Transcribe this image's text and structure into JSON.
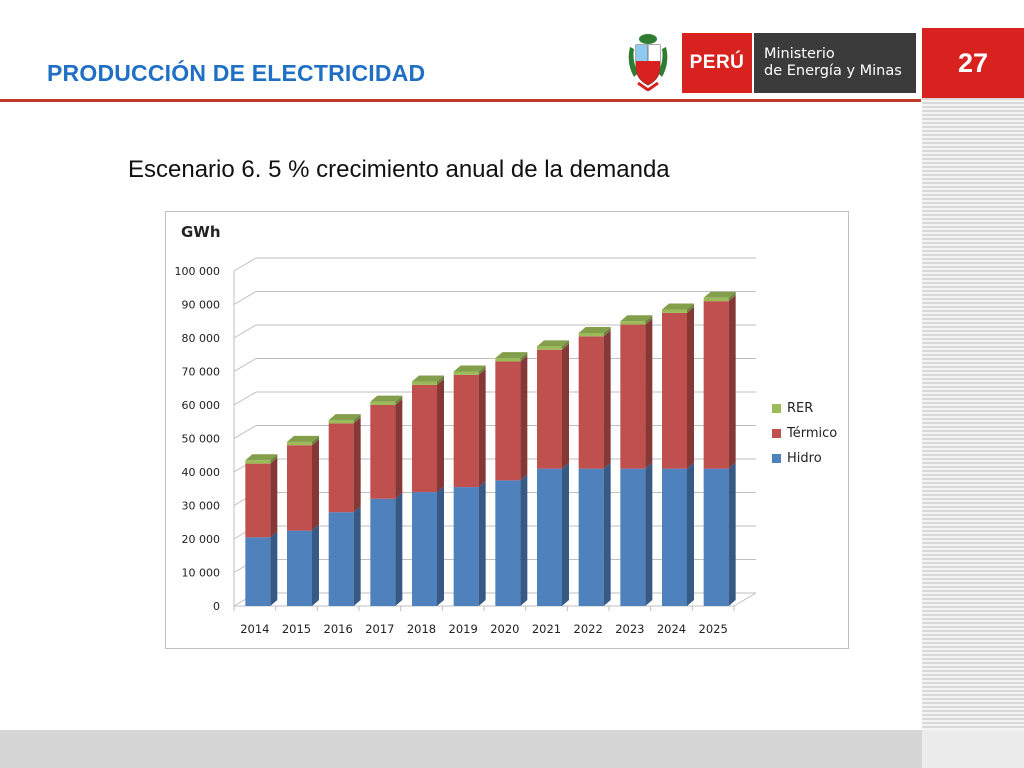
{
  "header": {
    "title": "PRODUCCIÓN DE ELECTRICIDAD",
    "page_number": "27"
  },
  "logo": {
    "country": "PERÚ",
    "ministry_line1": "Ministerio",
    "ministry_line2": "de Energía y Minas",
    "shield_icon": "peru-coat-of-arms-icon"
  },
  "slide": {
    "scenario_title": "Escenario 6. 5 % crecimiento anual de la demanda"
  },
  "colors": {
    "accent_red": "#d7221f",
    "title_blue": "#1f6fc4",
    "hidro": "#4f81bd",
    "termico": "#c0504d",
    "rer": "#9bbb59"
  },
  "chart_data": {
    "type": "bar",
    "stacked": true,
    "three_d": true,
    "title": "",
    "ylabel": "GWh",
    "xlabel": "",
    "ylim": [
      0,
      100000
    ],
    "yticks": [
      "0",
      "10 000",
      "20 000",
      "30 000",
      "40 000",
      "50 000",
      "60 000",
      "70 000",
      "80 000",
      "90 000",
      "100 000"
    ],
    "categories": [
      "2014",
      "2015",
      "2016",
      "2017",
      "2018",
      "2019",
      "2020",
      "2021",
      "2022",
      "2023",
      "2024",
      "2025"
    ],
    "series": [
      {
        "name": "Hidro",
        "color": "#4f81bd",
        "values": [
          20500,
          22500,
          28000,
          32000,
          34000,
          35500,
          37500,
          41000,
          41000,
          41000,
          41000,
          41000
        ]
      },
      {
        "name": "Térmico",
        "color": "#c0504d",
        "values": [
          22000,
          25500,
          26500,
          28000,
          32000,
          33500,
          35500,
          35500,
          39500,
          43000,
          46500,
          50000
        ]
      },
      {
        "name": "RER",
        "color": "#9bbb59",
        "values": [
          1000,
          1000,
          1000,
          1000,
          1000,
          1000,
          1000,
          1000,
          1000,
          1000,
          1000,
          1000
        ]
      }
    ],
    "legend_order": [
      "RER",
      "Térmico",
      "Hidro"
    ],
    "legend_position": "right",
    "grid": true
  }
}
